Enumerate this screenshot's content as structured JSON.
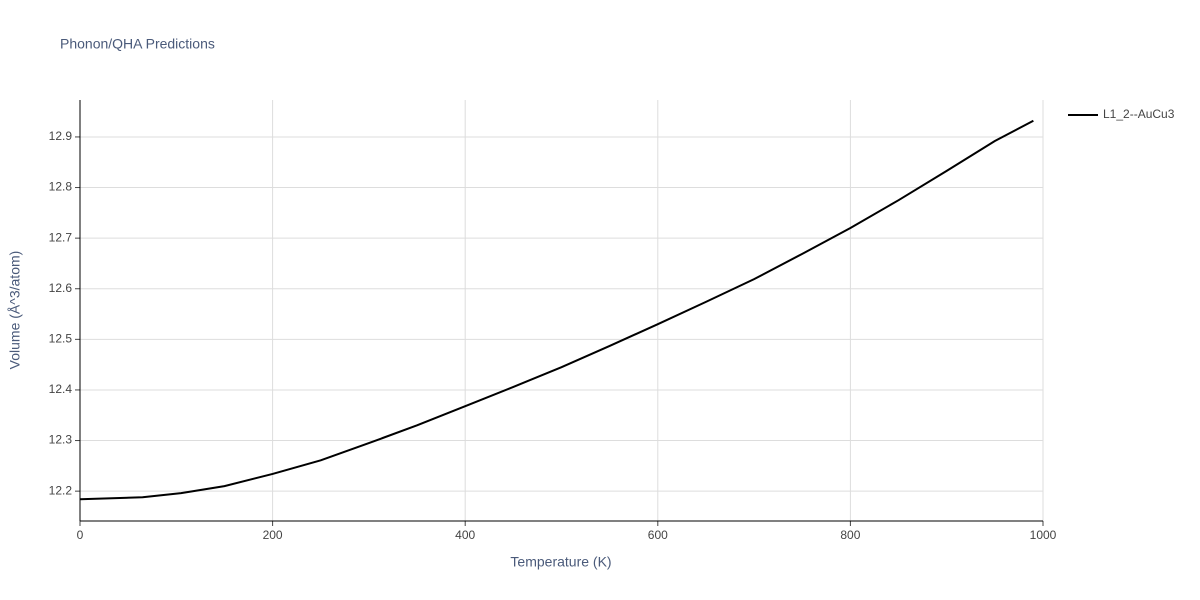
{
  "chart_data": {
    "type": "line",
    "title": "Phonon/QHA Predictions",
    "x_label": "Temperature (K)",
    "y_label": "Volume (Å^3/atom)",
    "x": [
      0,
      65,
      105,
      150,
      200,
      250,
      300,
      350,
      400,
      450,
      500,
      550,
      600,
      650,
      700,
      750,
      800,
      850,
      900,
      950,
      990
    ],
    "series": [
      {
        "name": "L1_2--AuCu3",
        "color": "#000000",
        "values": [
          12.184,
          12.188,
          12.196,
          12.21,
          12.234,
          12.261,
          12.295,
          12.33,
          12.368,
          12.406,
          12.445,
          12.487,
          12.53,
          12.574,
          12.619,
          12.669,
          12.72,
          12.775,
          12.833,
          12.892,
          12.932
        ]
      }
    ],
    "xlim": [
      0,
      1000
    ],
    "xticks": [
      0,
      200,
      400,
      600,
      800,
      1000
    ],
    "ylim": [
      12.141,
      12.973
    ],
    "yticks": [
      12.2,
      12.3,
      12.4,
      12.5,
      12.6,
      12.7,
      12.8,
      12.9
    ],
    "grid": true,
    "legend": "right"
  }
}
